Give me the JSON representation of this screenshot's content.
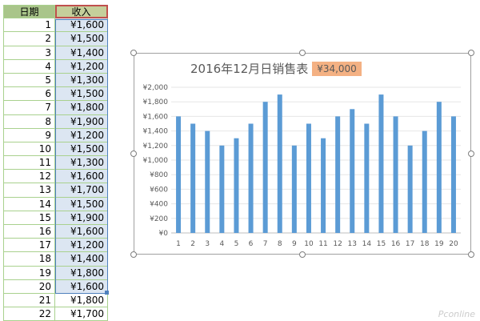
{
  "sheet": {
    "headers": [
      "日期",
      "收入"
    ],
    "rows": [
      [
        "1",
        "¥1,600"
      ],
      [
        "2",
        "¥1,500"
      ],
      [
        "3",
        "¥1,400"
      ],
      [
        "4",
        "¥1,200"
      ],
      [
        "5",
        "¥1,300"
      ],
      [
        "6",
        "¥1,500"
      ],
      [
        "7",
        "¥1,800"
      ],
      [
        "8",
        "¥1,900"
      ],
      [
        "9",
        "¥1,200"
      ],
      [
        "10",
        "¥1,500"
      ],
      [
        "11",
        "¥1,300"
      ],
      [
        "12",
        "¥1,600"
      ],
      [
        "13",
        "¥1,700"
      ],
      [
        "14",
        "¥1,500"
      ],
      [
        "15",
        "¥1,900"
      ],
      [
        "16",
        "¥1,600"
      ],
      [
        "17",
        "¥1,200"
      ],
      [
        "18",
        "¥1,400"
      ],
      [
        "19",
        "¥1,800"
      ],
      [
        "20",
        "¥1,600"
      ],
      [
        "21",
        "¥1,800"
      ],
      [
        "22",
        "¥1,700"
      ]
    ],
    "selected_rows": 20
  },
  "chart_data": {
    "type": "bar",
    "title": "2016年12月日销售表",
    "total_label": "¥34,000",
    "categories": [
      "1",
      "2",
      "3",
      "4",
      "5",
      "6",
      "7",
      "8",
      "9",
      "10",
      "11",
      "12",
      "13",
      "14",
      "15",
      "16",
      "17",
      "18",
      "19",
      "20"
    ],
    "values": [
      1600,
      1500,
      1400,
      1200,
      1300,
      1500,
      1800,
      1900,
      1200,
      1500,
      1300,
      1600,
      1700,
      1500,
      1900,
      1600,
      1200,
      1400,
      1800,
      1600
    ],
    "ylim": [
      0,
      2000
    ],
    "yticks": [
      "¥0",
      "¥200",
      "¥400",
      "¥600",
      "¥800",
      "¥1,000",
      "¥1,200",
      "¥1,400",
      "¥1,600",
      "¥1,800",
      "¥2,000"
    ],
    "bar_color": "#5b9bd5",
    "grid": true
  },
  "watermark": "Pconline"
}
